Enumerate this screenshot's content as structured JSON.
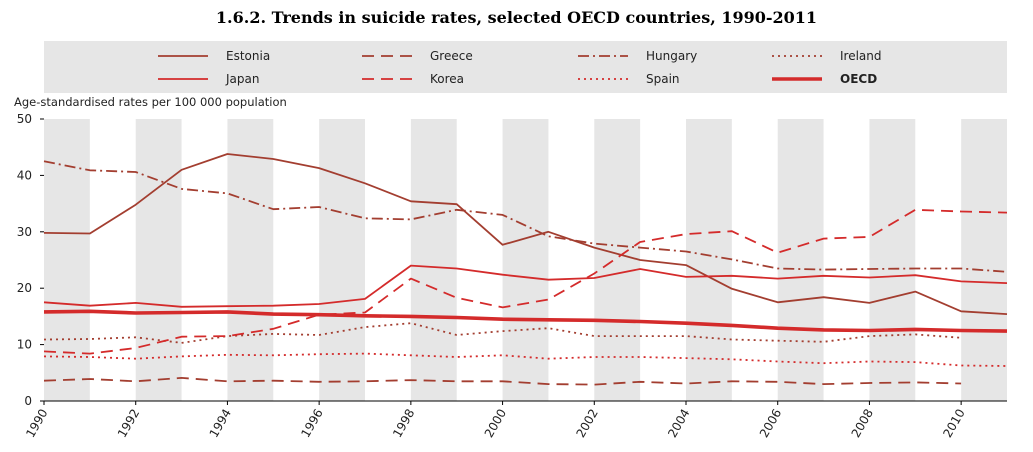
{
  "title": "1.6.2.  Trends in suicide rates, selected OECD countries, 1990-2011",
  "chart_data": {
    "type": "line",
    "ylabel": "Age-standardised rates per 100 000 population",
    "xlabel": "",
    "ylim": [
      0,
      50
    ],
    "xlim": [
      1990,
      2011
    ],
    "yticks": [
      0,
      10,
      20,
      30,
      40,
      50
    ],
    "xticks": [
      1990,
      1992,
      1994,
      1996,
      1998,
      2000,
      2002,
      2004,
      2006,
      2008,
      2010
    ],
    "grid": "vertical bands",
    "legend_position": "top",
    "series": [
      {
        "name": "Estonia",
        "color": "#a33e30",
        "dash": "solid",
        "width": 1.8,
        "points": [
          [
            1990,
            29.8
          ],
          [
            1991,
            29.7
          ],
          [
            1992,
            34.8
          ],
          [
            1993,
            41.0
          ],
          [
            1994,
            43.8
          ],
          [
            1995,
            42.9
          ],
          [
            1996,
            41.3
          ],
          [
            1997,
            38.6
          ],
          [
            1998,
            35.4
          ],
          [
            1999,
            34.9
          ],
          [
            2000,
            27.7
          ],
          [
            2001,
            30.0
          ],
          [
            2002,
            27.2
          ],
          [
            2003,
            25.0
          ],
          [
            2004,
            24.1
          ],
          [
            2005,
            19.9
          ],
          [
            2006,
            17.5
          ],
          [
            2007,
            18.4
          ],
          [
            2008,
            17.4
          ],
          [
            2009,
            19.4
          ],
          [
            2010,
            15.9
          ],
          [
            2011,
            15.4
          ]
        ]
      },
      {
        "name": "Greece",
        "color": "#a33e30",
        "dash": "long-dash",
        "width": 1.8,
        "points": [
          [
            1990,
            3.6
          ],
          [
            1991,
            3.9
          ],
          [
            1992,
            3.5
          ],
          [
            1993,
            4.1
          ],
          [
            1994,
            3.5
          ],
          [
            1995,
            3.6
          ],
          [
            1996,
            3.4
          ],
          [
            1997,
            3.5
          ],
          [
            1998,
            3.7
          ],
          [
            1999,
            3.5
          ],
          [
            2000,
            3.5
          ],
          [
            2001,
            3.0
          ],
          [
            2002,
            2.9
          ],
          [
            2003,
            3.4
          ],
          [
            2004,
            3.1
          ],
          [
            2005,
            3.5
          ],
          [
            2006,
            3.4
          ],
          [
            2007,
            3.0
          ],
          [
            2008,
            3.2
          ],
          [
            2009,
            3.3
          ],
          [
            2010,
            3.1
          ]
        ]
      },
      {
        "name": "Hungary",
        "color": "#a33e30",
        "dash": "dash-dot",
        "width": 1.8,
        "points": [
          [
            1990,
            42.5
          ],
          [
            1991,
            40.9
          ],
          [
            1992,
            40.6
          ],
          [
            1993,
            37.6
          ],
          [
            1994,
            36.8
          ],
          [
            1995,
            34.0
          ],
          [
            1996,
            34.4
          ],
          [
            1997,
            32.4
          ],
          [
            1998,
            32.2
          ],
          [
            1999,
            33.9
          ],
          [
            2000,
            33.0
          ],
          [
            2001,
            29.2
          ],
          [
            2002,
            27.9
          ],
          [
            2003,
            27.2
          ],
          [
            2004,
            26.5
          ],
          [
            2005,
            25.1
          ],
          [
            2006,
            23.5
          ],
          [
            2007,
            23.3
          ],
          [
            2008,
            23.4
          ],
          [
            2009,
            23.5
          ],
          [
            2010,
            23.5
          ],
          [
            2011,
            22.9
          ]
        ]
      },
      {
        "name": "Ireland",
        "color": "#a33e30",
        "dash": "dotted",
        "width": 1.8,
        "points": [
          [
            1990,
            10.9
          ],
          [
            1991,
            11.0
          ],
          [
            1992,
            11.3
          ],
          [
            1993,
            10.3
          ],
          [
            1994,
            11.5
          ],
          [
            1995,
            11.9
          ],
          [
            1996,
            11.7
          ],
          [
            1997,
            13.1
          ],
          [
            1998,
            13.8
          ],
          [
            1999,
            11.7
          ],
          [
            2000,
            12.4
          ],
          [
            2001,
            12.9
          ],
          [
            2002,
            11.5
          ],
          [
            2003,
            11.5
          ],
          [
            2004,
            11.5
          ],
          [
            2005,
            10.9
          ],
          [
            2006,
            10.7
          ],
          [
            2007,
            10.5
          ],
          [
            2008,
            11.5
          ],
          [
            2009,
            11.8
          ],
          [
            2010,
            11.2
          ]
        ]
      },
      {
        "name": "Japan",
        "color": "#d42b2b",
        "dash": "solid",
        "width": 1.8,
        "points": [
          [
            1990,
            17.5
          ],
          [
            1991,
            16.9
          ],
          [
            1992,
            17.4
          ],
          [
            1993,
            16.7
          ],
          [
            1994,
            16.8
          ],
          [
            1995,
            16.9
          ],
          [
            1996,
            17.2
          ],
          [
            1997,
            18.1
          ],
          [
            1998,
            24.0
          ],
          [
            1999,
            23.5
          ],
          [
            2000,
            22.4
          ],
          [
            2001,
            21.5
          ],
          [
            2002,
            21.8
          ],
          [
            2003,
            23.4
          ],
          [
            2004,
            22.0
          ],
          [
            2005,
            22.2
          ],
          [
            2006,
            21.7
          ],
          [
            2007,
            22.2
          ],
          [
            2008,
            21.9
          ],
          [
            2009,
            22.3
          ],
          [
            2010,
            21.2
          ],
          [
            2011,
            20.9
          ]
        ]
      },
      {
        "name": "Korea",
        "color": "#d42b2b",
        "dash": "long-dash",
        "width": 1.8,
        "points": [
          [
            1990,
            8.8
          ],
          [
            1991,
            8.4
          ],
          [
            1992,
            9.4
          ],
          [
            1993,
            11.4
          ],
          [
            1994,
            11.5
          ],
          [
            1995,
            12.8
          ],
          [
            1996,
            15.3
          ],
          [
            1997,
            15.7
          ],
          [
            1998,
            21.7
          ],
          [
            1999,
            18.3
          ],
          [
            2000,
            16.6
          ],
          [
            2001,
            18.0
          ],
          [
            2002,
            22.6
          ],
          [
            2003,
            28.2
          ],
          [
            2004,
            29.6
          ],
          [
            2005,
            30.1
          ],
          [
            2006,
            26.3
          ],
          [
            2007,
            28.8
          ],
          [
            2008,
            29.1
          ],
          [
            2009,
            33.9
          ],
          [
            2010,
            33.6
          ],
          [
            2011,
            33.4
          ]
        ]
      },
      {
        "name": "Spain",
        "color": "#d42b2b",
        "dash": "dotted",
        "width": 1.8,
        "points": [
          [
            1990,
            7.9
          ],
          [
            1991,
            7.8
          ],
          [
            1992,
            7.5
          ],
          [
            1993,
            7.9
          ],
          [
            1994,
            8.2
          ],
          [
            1995,
            8.1
          ],
          [
            1996,
            8.3
          ],
          [
            1997,
            8.4
          ],
          [
            1998,
            8.1
          ],
          [
            1999,
            7.8
          ],
          [
            2000,
            8.1
          ],
          [
            2001,
            7.5
          ],
          [
            2002,
            7.8
          ],
          [
            2003,
            7.8
          ],
          [
            2004,
            7.6
          ],
          [
            2005,
            7.4
          ],
          [
            2006,
            7.0
          ],
          [
            2007,
            6.7
          ],
          [
            2008,
            7.0
          ],
          [
            2009,
            6.9
          ],
          [
            2010,
            6.3
          ],
          [
            2011,
            6.2
          ]
        ]
      },
      {
        "name": "OECD",
        "color": "#d42b2b",
        "dash": "solid",
        "width": 3.6,
        "points": [
          [
            1990,
            15.8
          ],
          [
            1991,
            15.9
          ],
          [
            1992,
            15.6
          ],
          [
            1993,
            15.7
          ],
          [
            1994,
            15.8
          ],
          [
            1995,
            15.4
          ],
          [
            1996,
            15.3
          ],
          [
            1997,
            15.1
          ],
          [
            1998,
            15.0
          ],
          [
            1999,
            14.8
          ],
          [
            2000,
            14.5
          ],
          [
            2001,
            14.4
          ],
          [
            2002,
            14.3
          ],
          [
            2003,
            14.1
          ],
          [
            2004,
            13.8
          ],
          [
            2005,
            13.4
          ],
          [
            2006,
            12.9
          ],
          [
            2007,
            12.6
          ],
          [
            2008,
            12.5
          ],
          [
            2009,
            12.7
          ],
          [
            2010,
            12.5
          ],
          [
            2011,
            12.4
          ]
        ]
      }
    ]
  }
}
